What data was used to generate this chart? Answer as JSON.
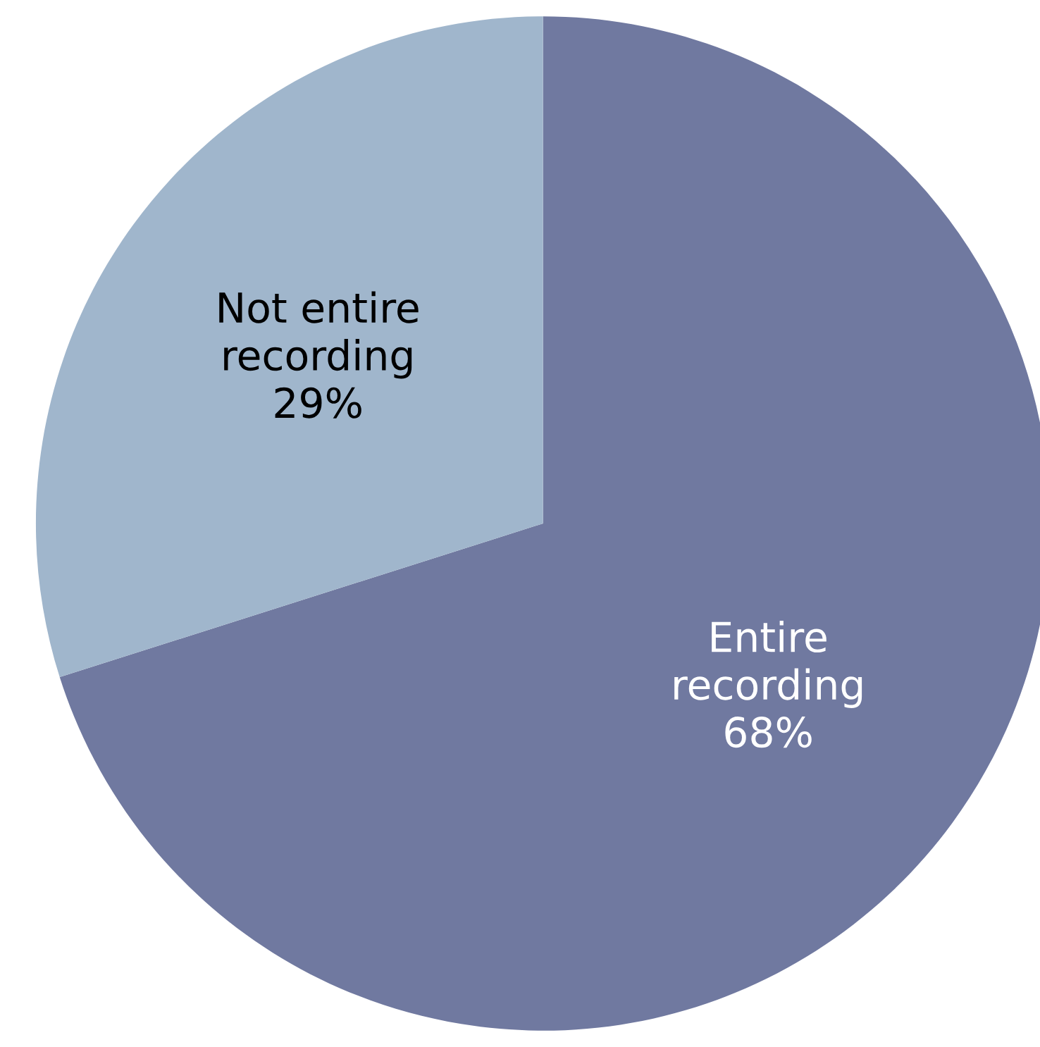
{
  "chart_data": {
    "type": "pie",
    "categories": [
      "Entire recording",
      "Not entire recording"
    ],
    "values": [
      68,
      29
    ],
    "value_labels": [
      "68%",
      "29%"
    ],
    "colors": [
      "#7079a0",
      "#a0b6cc"
    ],
    "legend": false
  }
}
